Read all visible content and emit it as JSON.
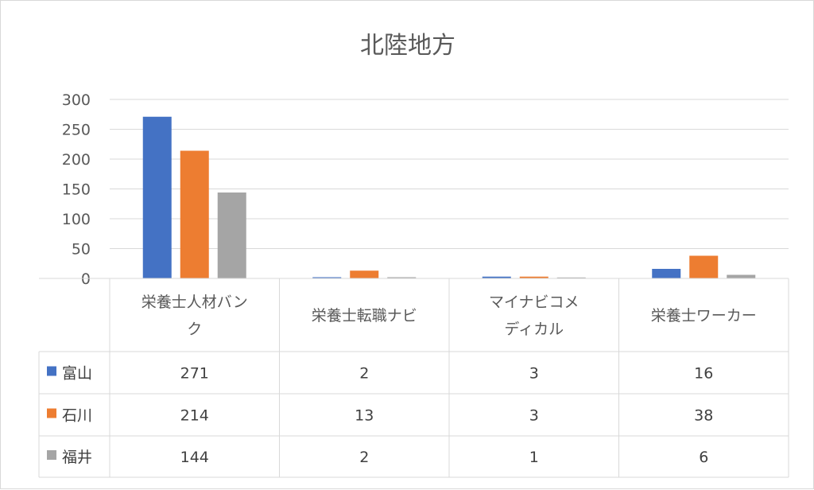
{
  "chart_data": {
    "type": "bar",
    "title": "北陸地方",
    "categories": [
      "栄養士人材バンク",
      "栄養士転職ナビ",
      "マイナビコメディカル",
      "栄養士ワーカー"
    ],
    "category_label_lines": [
      [
        "栄養士人材バン",
        "ク"
      ],
      [
        "栄養士転職ナビ"
      ],
      [
        "マイナビコメ",
        "ディカル"
      ],
      [
        "栄養士ワーカー"
      ]
    ],
    "series": [
      {
        "name": "富山",
        "color": "#4472c4",
        "values": [
          271,
          2,
          3,
          16
        ]
      },
      {
        "name": "石川",
        "color": "#ed7d31",
        "values": [
          214,
          13,
          3,
          38
        ]
      },
      {
        "name": "福井",
        "color": "#a5a5a5",
        "values": [
          144,
          2,
          1,
          6
        ]
      }
    ],
    "ylim": [
      0,
      300
    ],
    "yticks": [
      0,
      50,
      100,
      150,
      200,
      250,
      300
    ],
    "grid": true,
    "legend": "data-table",
    "data_table": true
  }
}
